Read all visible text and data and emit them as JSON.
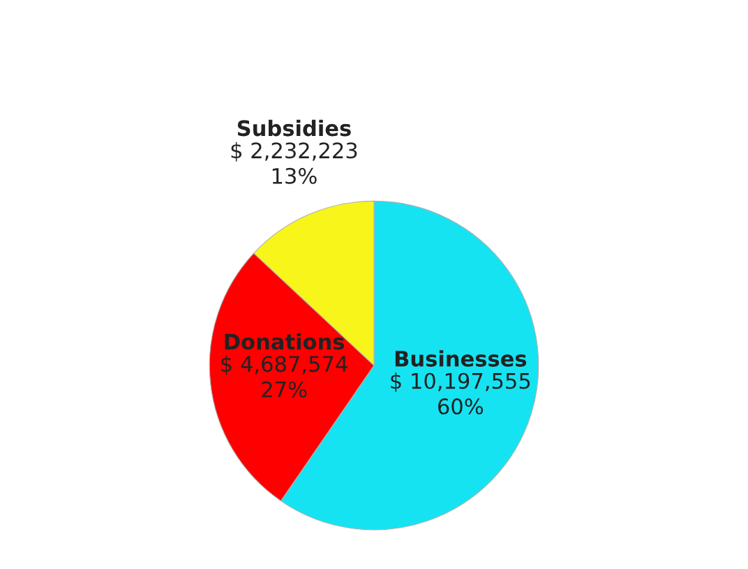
{
  "chart_data": {
    "type": "pie",
    "categories": [
      "Businesses",
      "Donations",
      "Subsidies"
    ],
    "values": [
      10197555,
      4687574,
      2232223
    ],
    "colors": [
      "#16e3f2",
      "#ff0000",
      "#f8f51a"
    ],
    "value_labels": [
      "$ 10,197,555\n60%",
      "$ 4,687,574\n27%",
      "$ 2,232,223\n13%"
    ],
    "legend": false
  }
}
